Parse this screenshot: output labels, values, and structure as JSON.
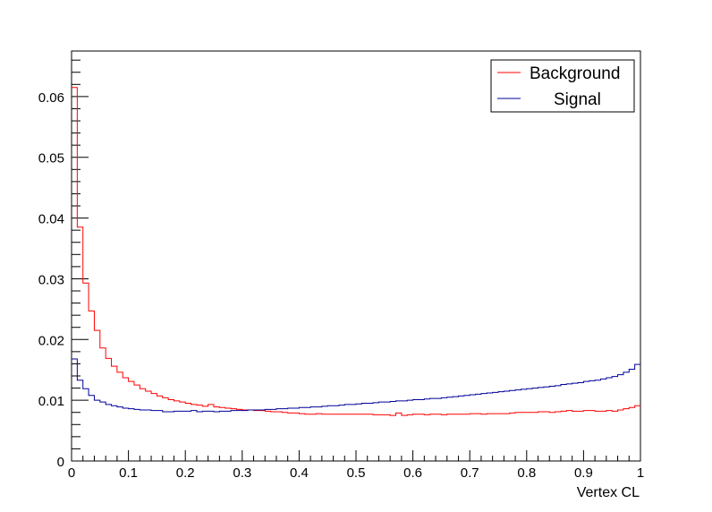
{
  "chart_data": {
    "type": "line",
    "xlabel": "Vertex CL",
    "ylabel": "",
    "xlim": [
      0,
      1
    ],
    "ylim": [
      0,
      0.0675
    ],
    "x_ticks": [
      0,
      0.1,
      0.2,
      0.3,
      0.4,
      0.5,
      0.6,
      0.7,
      0.8,
      0.9,
      1
    ],
    "x_tick_labels": [
      "0",
      "0.1",
      "0.2",
      "0.3",
      "0.4",
      "0.5",
      "0.6",
      "0.7",
      "0.8",
      "0.9",
      "1"
    ],
    "y_ticks": [
      0,
      0.01,
      0.02,
      0.03,
      0.04,
      0.05,
      0.06
    ],
    "y_tick_labels": [
      "0",
      "0.01",
      "0.02",
      "0.03",
      "0.04",
      "0.05",
      "0.06"
    ],
    "legend_position": "top-right",
    "bins": 100,
    "series": [
      {
        "name": "Background",
        "color": "#ff0000",
        "values": [
          0.0615,
          0.0385,
          0.0293,
          0.0247,
          0.0215,
          0.0186,
          0.0169,
          0.0156,
          0.0146,
          0.0137,
          0.0131,
          0.0125,
          0.0119,
          0.0115,
          0.0111,
          0.0107,
          0.0104,
          0.0101,
          0.0099,
          0.0097,
          0.0095,
          0.0093,
          0.0092,
          0.009,
          0.0093,
          0.0089,
          0.0088,
          0.0087,
          0.0086,
          0.0085,
          0.0084,
          0.0084,
          0.0083,
          0.0083,
          0.0082,
          0.0081,
          0.0081,
          0.008,
          0.0079,
          0.0079,
          0.0078,
          0.0077,
          0.0077,
          0.0078,
          0.0077,
          0.0077,
          0.0077,
          0.0077,
          0.0077,
          0.0077,
          0.0077,
          0.0077,
          0.0077,
          0.0076,
          0.0076,
          0.0076,
          0.0075,
          0.0079,
          0.0075,
          0.0076,
          0.0077,
          0.0077,
          0.0076,
          0.0077,
          0.0077,
          0.0076,
          0.0077,
          0.0077,
          0.0077,
          0.0077,
          0.0078,
          0.0078,
          0.0077,
          0.0078,
          0.0078,
          0.0078,
          0.0078,
          0.0079,
          0.008,
          0.008,
          0.008,
          0.008,
          0.0081,
          0.0081,
          0.008,
          0.0081,
          0.0082,
          0.0083,
          0.0082,
          0.0082,
          0.0083,
          0.0083,
          0.0082,
          0.0082,
          0.0083,
          0.0082,
          0.0084,
          0.0086,
          0.0088,
          0.0091
        ]
      },
      {
        "name": "Signal",
        "color": "#000099",
        "values": [
          0.0168,
          0.0133,
          0.0119,
          0.0108,
          0.01,
          0.0097,
          0.0093,
          0.0091,
          0.0089,
          0.0087,
          0.0086,
          0.0085,
          0.0084,
          0.0084,
          0.0083,
          0.0083,
          0.0081,
          0.0081,
          0.0082,
          0.0082,
          0.0082,
          0.0083,
          0.0081,
          0.0082,
          0.0082,
          0.0081,
          0.0082,
          0.0082,
          0.0083,
          0.0083,
          0.0083,
          0.0084,
          0.0084,
          0.0084,
          0.0085,
          0.0085,
          0.0086,
          0.0086,
          0.0087,
          0.0087,
          0.0088,
          0.0088,
          0.0089,
          0.0089,
          0.009,
          0.0091,
          0.0091,
          0.0092,
          0.0093,
          0.0093,
          0.0094,
          0.0095,
          0.0095,
          0.0096,
          0.0097,
          0.0097,
          0.0098,
          0.0099,
          0.0099,
          0.01,
          0.0101,
          0.0101,
          0.0102,
          0.0103,
          0.0103,
          0.0104,
          0.0105,
          0.0106,
          0.0107,
          0.0108,
          0.0109,
          0.011,
          0.0111,
          0.0112,
          0.0113,
          0.0114,
          0.0115,
          0.0116,
          0.0117,
          0.0118,
          0.0119,
          0.012,
          0.0121,
          0.0122,
          0.0123,
          0.0124,
          0.0126,
          0.0127,
          0.0128,
          0.0129,
          0.0131,
          0.0132,
          0.0133,
          0.0135,
          0.0137,
          0.0139,
          0.0142,
          0.0146,
          0.0151,
          0.0159
        ]
      }
    ]
  }
}
